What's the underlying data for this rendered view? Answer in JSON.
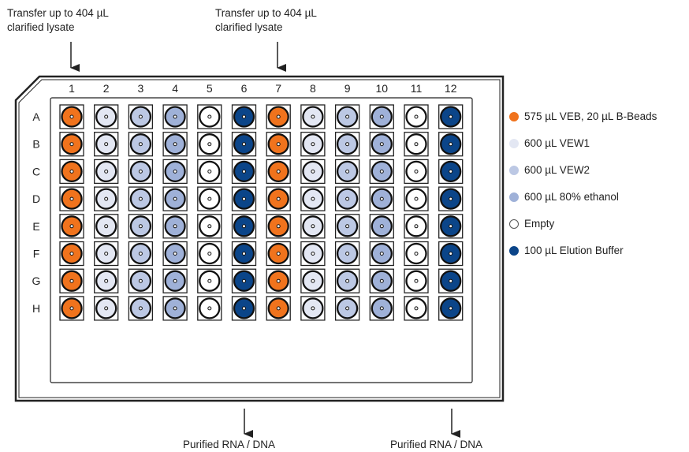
{
  "annotations": {
    "top_left": [
      "Transfer up to 404 µL",
      "clarified lysate"
    ],
    "top_right": [
      "Transfer up to 404 µL",
      "clarified lysate"
    ],
    "bottom_left": "Purified RNA / DNA",
    "bottom_right": "Purified RNA / DNA"
  },
  "plate": {
    "columns": [
      "1",
      "2",
      "3",
      "4",
      "5",
      "6",
      "7",
      "8",
      "9",
      "10",
      "11",
      "12"
    ],
    "rows": [
      "A",
      "B",
      "C",
      "D",
      "E",
      "F",
      "G",
      "H"
    ],
    "column_reagents": [
      "veb",
      "vew1",
      "vew2",
      "ethanol",
      "empty",
      "elution",
      "veb",
      "vew1",
      "vew2",
      "ethanol",
      "empty",
      "elution"
    ]
  },
  "legend": [
    {
      "key": "veb",
      "label": "575 µL VEB, 20 µL B-Beads",
      "color": "#f0731d"
    },
    {
      "key": "vew1",
      "label": "600 µL VEW1",
      "color": "#e3e7f3"
    },
    {
      "key": "vew2",
      "label": "600 µL VEW2",
      "color": "#bcc8e4"
    },
    {
      "key": "ethanol",
      "label": "600 µL 80% ethanol",
      "color": "#9fb1d8"
    },
    {
      "key": "empty",
      "label": "Empty",
      "color": "#ffffff"
    },
    {
      "key": "elution",
      "label": "100 µL Elution Buffer",
      "color": "#0b4589"
    }
  ]
}
